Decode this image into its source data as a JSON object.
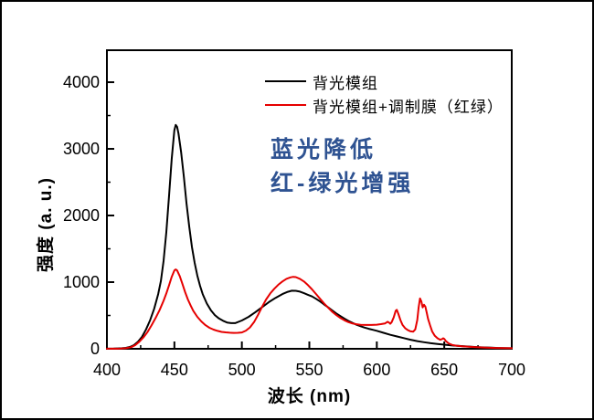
{
  "chart_data": {
    "type": "line",
    "title": "",
    "xlabel": "波长 (nm)",
    "ylabel": "强度 (a. u.)",
    "xlim": [
      400,
      700
    ],
    "ylim": [
      0,
      4480
    ],
    "x_major_ticks": [
      400,
      450,
      500,
      550,
      600,
      650,
      700
    ],
    "x_minor_ticks": [
      425,
      475,
      525,
      575,
      625,
      675
    ],
    "y_major_ticks": [
      0,
      1000,
      2000,
      3000,
      4000
    ],
    "y_minor_ticks": [
      500,
      1500,
      2500,
      3500
    ],
    "grid": false,
    "legend_position": "top-inside",
    "annotations": [
      "蓝光降低",
      "红-绿光增强"
    ],
    "annotation_color": "#2f5392",
    "series": [
      {
        "name": "背光模组",
        "color": "#000000",
        "points": [
          [
            400,
            2
          ],
          [
            405,
            3
          ],
          [
            408,
            5
          ],
          [
            411,
            8
          ],
          [
            414,
            14
          ],
          [
            417,
            28
          ],
          [
            420,
            55
          ],
          [
            423,
            105
          ],
          [
            426,
            180
          ],
          [
            429,
            290
          ],
          [
            432,
            430
          ],
          [
            435,
            600
          ],
          [
            438,
            820
          ],
          [
            440,
            1020
          ],
          [
            442,
            1320
          ],
          [
            444,
            1750
          ],
          [
            446,
            2280
          ],
          [
            448,
            2850
          ],
          [
            450,
            3280
          ],
          [
            451,
            3360
          ],
          [
            452,
            3330
          ],
          [
            453,
            3230
          ],
          [
            455,
            2950
          ],
          [
            457,
            2580
          ],
          [
            459,
            2180
          ],
          [
            461,
            1830
          ],
          [
            463,
            1530
          ],
          [
            465,
            1290
          ],
          [
            467,
            1100
          ],
          [
            469,
            945
          ],
          [
            471,
            820
          ],
          [
            474,
            680
          ],
          [
            477,
            580
          ],
          [
            480,
            505
          ],
          [
            483,
            455
          ],
          [
            486,
            420
          ],
          [
            489,
            395
          ],
          [
            492,
            385
          ],
          [
            495,
            385
          ],
          [
            500,
            425
          ],
          [
            505,
            480
          ],
          [
            510,
            550
          ],
          [
            515,
            625
          ],
          [
            520,
            700
          ],
          [
            525,
            765
          ],
          [
            530,
            820
          ],
          [
            534,
            855
          ],
          [
            537,
            872
          ],
          [
            540,
            870
          ],
          [
            543,
            857
          ],
          [
            546,
            835
          ],
          [
            549,
            810
          ],
          [
            552,
            785
          ],
          [
            555,
            750
          ],
          [
            558,
            710
          ],
          [
            561,
            665
          ],
          [
            564,
            620
          ],
          [
            567,
            575
          ],
          [
            570,
            530
          ],
          [
            573,
            490
          ],
          [
            576,
            452
          ],
          [
            579,
            418
          ],
          [
            582,
            388
          ],
          [
            585,
            360
          ],
          [
            588,
            338
          ],
          [
            591,
            318
          ],
          [
            594,
            300
          ],
          [
            597,
            285
          ],
          [
            600,
            270
          ],
          [
            605,
            240
          ],
          [
            610,
            210
          ],
          [
            615,
            185
          ],
          [
            620,
            160
          ],
          [
            625,
            135
          ],
          [
            630,
            115
          ],
          [
            635,
            98
          ],
          [
            640,
            84
          ],
          [
            645,
            72
          ],
          [
            650,
            62
          ],
          [
            655,
            52
          ],
          [
            660,
            44
          ],
          [
            665,
            37
          ],
          [
            670,
            30
          ],
          [
            675,
            25
          ],
          [
            680,
            20
          ],
          [
            685,
            16
          ],
          [
            690,
            13
          ],
          [
            695,
            10
          ],
          [
            700,
            8
          ]
        ]
      },
      {
        "name": "背光模组+调制膜（红绿）",
        "color": "#e60000",
        "points": [
          [
            400,
            2
          ],
          [
            406,
            2
          ],
          [
            410,
            3
          ],
          [
            414,
            8
          ],
          [
            418,
            25
          ],
          [
            421,
            55
          ],
          [
            424,
            105
          ],
          [
            427,
            170
          ],
          [
            430,
            250
          ],
          [
            433,
            350
          ],
          [
            436,
            460
          ],
          [
            439,
            580
          ],
          [
            442,
            720
          ],
          [
            444,
            830
          ],
          [
            446,
            950
          ],
          [
            448,
            1080
          ],
          [
            450,
            1175
          ],
          [
            451,
            1190
          ],
          [
            452,
            1175
          ],
          [
            454,
            1090
          ],
          [
            456,
            970
          ],
          [
            458,
            850
          ],
          [
            460,
            740
          ],
          [
            462,
            650
          ],
          [
            464,
            570
          ],
          [
            467,
            480
          ],
          [
            470,
            410
          ],
          [
            473,
            355
          ],
          [
            476,
            315
          ],
          [
            479,
            288
          ],
          [
            482,
            268
          ],
          [
            485,
            254
          ],
          [
            488,
            246
          ],
          [
            491,
            241
          ],
          [
            494,
            239
          ],
          [
            497,
            240
          ],
          [
            500,
            245
          ],
          [
            503,
            272
          ],
          [
            506,
            320
          ],
          [
            509,
            400
          ],
          [
            512,
            510
          ],
          [
            515,
            630
          ],
          [
            518,
            740
          ],
          [
            521,
            830
          ],
          [
            524,
            900
          ],
          [
            527,
            960
          ],
          [
            530,
            1010
          ],
          [
            533,
            1050
          ],
          [
            536,
            1072
          ],
          [
            538,
            1080
          ],
          [
            540,
            1075
          ],
          [
            543,
            1050
          ],
          [
            546,
            1010
          ],
          [
            549,
            955
          ],
          [
            552,
            890
          ],
          [
            555,
            820
          ],
          [
            558,
            750
          ],
          [
            561,
            680
          ],
          [
            564,
            615
          ],
          [
            567,
            555
          ],
          [
            570,
            505
          ],
          [
            573,
            462
          ],
          [
            576,
            428
          ],
          [
            579,
            400
          ],
          [
            582,
            380
          ],
          [
            585,
            368
          ],
          [
            588,
            361
          ],
          [
            592,
            358
          ],
          [
            596,
            358
          ],
          [
            600,
            362
          ],
          [
            603,
            370
          ],
          [
            606,
            380
          ],
          [
            608,
            405
          ],
          [
            609,
            395
          ],
          [
            610,
            375
          ],
          [
            611,
            400
          ],
          [
            612.5,
            470
          ],
          [
            614,
            570
          ],
          [
            614.8,
            585
          ],
          [
            616,
            520
          ],
          [
            617.5,
            430
          ],
          [
            619,
            360
          ],
          [
            621,
            310
          ],
          [
            623,
            280
          ],
          [
            625,
            262
          ],
          [
            627,
            258
          ],
          [
            628.5,
            290
          ],
          [
            630,
            430
          ],
          [
            631,
            620
          ],
          [
            632,
            755
          ],
          [
            633,
            710
          ],
          [
            634,
            620
          ],
          [
            635,
            660
          ],
          [
            636,
            630
          ],
          [
            637,
            540
          ],
          [
            638,
            450
          ],
          [
            639.5,
            350
          ],
          [
            641,
            260
          ],
          [
            643,
            195
          ],
          [
            645,
            158
          ],
          [
            647,
            135
          ],
          [
            648.3,
            145
          ],
          [
            649.2,
            158
          ],
          [
            650,
            148
          ],
          [
            651,
            120
          ],
          [
            652.5,
            92
          ],
          [
            654,
            72
          ],
          [
            656,
            58
          ],
          [
            659,
            46
          ],
          [
            663,
            38
          ],
          [
            668,
            30
          ],
          [
            674,
            24
          ],
          [
            681,
            18
          ],
          [
            688,
            13
          ],
          [
            694,
            10
          ],
          [
            700,
            8
          ]
        ]
      }
    ]
  }
}
